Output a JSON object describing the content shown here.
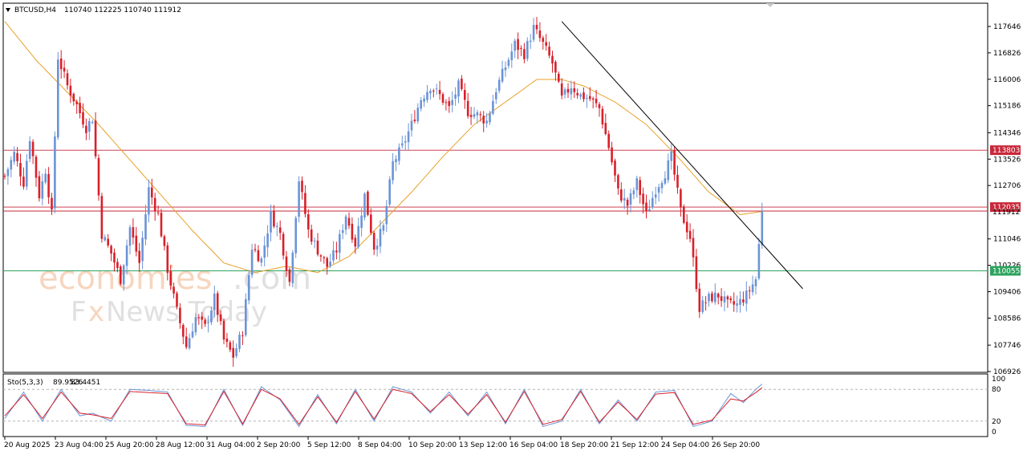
{
  "header": {
    "symbol": "BTCUSD,H4",
    "ohlc": "110740 112225 110740 111912",
    "collapse_icon": "triangle-down-icon"
  },
  "watermark": {
    "line1_orange": "economies",
    "line1_gray": ".com",
    "line2_f": "F",
    "line2_x": "x",
    "line2_rest": "News Today"
  },
  "colors": {
    "bull": "#6b94d6",
    "bear": "#d8202a",
    "ma": "#e8a12a",
    "resistance": "#b5222e",
    "support": "#2e9e62",
    "trend": "#000000",
    "stoch_main": "#6b94d6",
    "stoch_signal": "#d8202a"
  },
  "price_axis": {
    "ticks": [
      "117646",
      "116826",
      "116006",
      "115186",
      "114346",
      "113526",
      "112706",
      "111046",
      "110226",
      "109406",
      "108586",
      "107746",
      "106926"
    ],
    "ylim": [
      106926,
      118200
    ]
  },
  "levels": [
    {
      "name": "upper-resistance",
      "value": 113803,
      "label": "113803",
      "color": "#c8283a"
    },
    {
      "name": "lower-resistance",
      "value": 112035,
      "label": "112035",
      "color": "#c8283a"
    },
    {
      "name": "current-price",
      "value": 111912,
      "label": "111912",
      "color": "#c8283a"
    },
    {
      "name": "support",
      "value": 110055,
      "label": "110055",
      "color": "#2ea35f"
    }
  ],
  "time_axis": {
    "labels": [
      "20 Aug 2025",
      "23 Aug 04:00",
      "25 Aug 20:00",
      "28 Aug 12:00",
      "31 Aug 04:00",
      "2 Sep 20:00",
      "5 Sep 12:00",
      "8 Sep 04:00",
      "10 Sep 20:00",
      "13 Sep 12:00",
      "16 Sep 04:00",
      "18 Sep 20:00",
      "21 Sep 12:00",
      "24 Sep 04:00",
      "26 Sep 20:00"
    ]
  },
  "stochastic": {
    "label": "Sto(5,3,3)",
    "main_value": "89.9526",
    "signal_value": "83.4451",
    "ticks": [
      "100",
      "80",
      "20",
      "0"
    ],
    "levels": [
      80,
      20
    ]
  },
  "chart_data": {
    "type": "candlestick",
    "symbol": "BTCUSD",
    "timeframe": "H4",
    "ylim": [
      106926,
      118200
    ],
    "anchors": [
      [
        0,
        113000
      ],
      [
        3,
        113700
      ],
      [
        6,
        112800
      ],
      [
        8,
        114200
      ],
      [
        11,
        112400
      ],
      [
        13,
        113200
      ],
      [
        15,
        111800
      ],
      [
        17,
        116700
      ],
      [
        20,
        115800
      ],
      [
        23,
        115200
      ],
      [
        26,
        114500
      ],
      [
        28,
        114800
      ],
      [
        31,
        111200
      ],
      [
        34,
        110600
      ],
      [
        37,
        109800
      ],
      [
        40,
        111400
      ],
      [
        43,
        110300
      ],
      [
        46,
        112600
      ],
      [
        49,
        111800
      ],
      [
        52,
        110100
      ],
      [
        55,
        108800
      ],
      [
        58,
        107700
      ],
      [
        61,
        108600
      ],
      [
        64,
        108300
      ],
      [
        67,
        109200
      ],
      [
        70,
        107900
      ],
      [
        73,
        107400
      ],
      [
        76,
        108200
      ],
      [
        79,
        110800
      ],
      [
        82,
        110400
      ],
      [
        85,
        111800
      ],
      [
        88,
        111200
      ],
      [
        91,
        109700
      ],
      [
        94,
        112900
      ],
      [
        97,
        111300
      ],
      [
        100,
        110700
      ],
      [
        103,
        110200
      ],
      [
        106,
        110700
      ],
      [
        109,
        111800
      ],
      [
        112,
        110900
      ],
      [
        115,
        112400
      ],
      [
        118,
        110800
      ],
      [
        121,
        111400
      ],
      [
        124,
        113400
      ],
      [
        127,
        113900
      ],
      [
        130,
        114600
      ],
      [
        133,
        115400
      ],
      [
        136,
        115800
      ],
      [
        139,
        115500
      ],
      [
        142,
        115100
      ],
      [
        145,
        115800
      ],
      [
        148,
        115000
      ],
      [
        151,
        114900
      ],
      [
        154,
        114700
      ],
      [
        157,
        115700
      ],
      [
        160,
        116400
      ],
      [
        163,
        117100
      ],
      [
        166,
        116800
      ],
      [
        169,
        117600
      ],
      [
        172,
        117100
      ],
      [
        175,
        116500
      ],
      [
        178,
        115400
      ],
      [
        181,
        115800
      ],
      [
        184,
        115500
      ],
      [
        187,
        115400
      ],
      [
        190,
        115100
      ],
      [
        193,
        113900
      ],
      [
        196,
        112500
      ],
      [
        199,
        112100
      ],
      [
        202,
        112800
      ],
      [
        205,
        111800
      ],
      [
        208,
        112600
      ],
      [
        211,
        113100
      ],
      [
        213,
        113600
      ],
      [
        216,
        111900
      ],
      [
        219,
        111100
      ],
      [
        222,
        108900
      ],
      [
        225,
        109200
      ],
      [
        228,
        109300
      ],
      [
        231,
        109000
      ],
      [
        234,
        109000
      ],
      [
        237,
        109300
      ],
      [
        240,
        109800
      ],
      [
        242,
        111912
      ]
    ],
    "moving_average": [
      [
        0,
        117800
      ],
      [
        10,
        116600
      ],
      [
        20,
        115600
      ],
      [
        30,
        114600
      ],
      [
        40,
        113500
      ],
      [
        50,
        112400
      ],
      [
        60,
        111300
      ],
      [
        70,
        110300
      ],
      [
        80,
        110000
      ],
      [
        90,
        110200
      ],
      [
        100,
        110000
      ],
      [
        110,
        110500
      ],
      [
        120,
        111500
      ],
      [
        130,
        112500
      ],
      [
        140,
        113600
      ],
      [
        150,
        114600
      ],
      [
        160,
        115300
      ],
      [
        170,
        116000
      ],
      [
        178,
        116000
      ],
      [
        185,
        115800
      ],
      [
        195,
        115300
      ],
      [
        205,
        114600
      ],
      [
        215,
        113600
      ],
      [
        225,
        112500
      ],
      [
        235,
        111800
      ],
      [
        242,
        111900
      ]
    ],
    "trendline": [
      [
        178,
        117800
      ],
      [
        255,
        109500
      ]
    ],
    "stochastic_main": [
      [
        0,
        25
      ],
      [
        6,
        75
      ],
      [
        12,
        20
      ],
      [
        18,
        80
      ],
      [
        24,
        30
      ],
      [
        28,
        35
      ],
      [
        34,
        20
      ],
      [
        40,
        80
      ],
      [
        46,
        78
      ],
      [
        52,
        75
      ],
      [
        58,
        12
      ],
      [
        64,
        10
      ],
      [
        70,
        80
      ],
      [
        76,
        12
      ],
      [
        82,
        85
      ],
      [
        88,
        60
      ],
      [
        94,
        10
      ],
      [
        100,
        70
      ],
      [
        106,
        15
      ],
      [
        112,
        80
      ],
      [
        118,
        20
      ],
      [
        124,
        85
      ],
      [
        130,
        75
      ],
      [
        136,
        35
      ],
      [
        142,
        75
      ],
      [
        148,
        30
      ],
      [
        154,
        75
      ],
      [
        160,
        15
      ],
      [
        166,
        80
      ],
      [
        172,
        10
      ],
      [
        178,
        20
      ],
      [
        184,
        80
      ],
      [
        190,
        15
      ],
      [
        196,
        60
      ],
      [
        202,
        20
      ],
      [
        208,
        75
      ],
      [
        214,
        78
      ],
      [
        220,
        10
      ],
      [
        226,
        20
      ],
      [
        232,
        72
      ],
      [
        236,
        55
      ],
      [
        240,
        80
      ],
      [
        242,
        90
      ]
    ],
    "stochastic_signal": [
      [
        0,
        30
      ],
      [
        6,
        70
      ],
      [
        12,
        25
      ],
      [
        18,
        75
      ],
      [
        24,
        35
      ],
      [
        28,
        32
      ],
      [
        34,
        25
      ],
      [
        40,
        76
      ],
      [
        46,
        74
      ],
      [
        52,
        72
      ],
      [
        58,
        15
      ],
      [
        64,
        13
      ],
      [
        70,
        76
      ],
      [
        76,
        15
      ],
      [
        82,
        80
      ],
      [
        88,
        62
      ],
      [
        94,
        14
      ],
      [
        100,
        66
      ],
      [
        106,
        18
      ],
      [
        112,
        76
      ],
      [
        118,
        24
      ],
      [
        124,
        80
      ],
      [
        130,
        72
      ],
      [
        136,
        38
      ],
      [
        142,
        70
      ],
      [
        148,
        33
      ],
      [
        154,
        70
      ],
      [
        160,
        18
      ],
      [
        166,
        76
      ],
      [
        172,
        14
      ],
      [
        178,
        23
      ],
      [
        184,
        76
      ],
      [
        190,
        18
      ],
      [
        196,
        56
      ],
      [
        202,
        23
      ],
      [
        208,
        71
      ],
      [
        214,
        74
      ],
      [
        220,
        14
      ],
      [
        226,
        22
      ],
      [
        232,
        62
      ],
      [
        236,
        58
      ],
      [
        240,
        74
      ],
      [
        242,
        83
      ]
    ]
  }
}
